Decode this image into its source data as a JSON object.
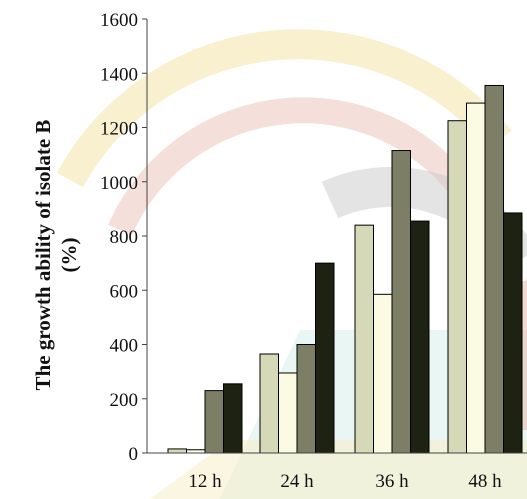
{
  "chart_data": {
    "type": "bar",
    "title": "",
    "xlabel": "",
    "ylabel_lines": [
      "The growth ability of isolate B",
      "(%)"
    ],
    "categories": [
      "12 h",
      "24 h",
      "36 h",
      "48 h"
    ],
    "series": [
      {
        "values": [
          15,
          365,
          840,
          1225
        ],
        "color": "#d6d9b8"
      },
      {
        "values": [
          12,
          295,
          585,
          1290
        ],
        "color": "#fbfbe4"
      },
      {
        "values": [
          230,
          400,
          1115,
          1355
        ],
        "color": "#7c7f66"
      },
      {
        "values": [
          255,
          700,
          855,
          885
        ],
        "color": "#1e2212"
      }
    ],
    "yticks": [
      "0",
      "200",
      "400",
      "600",
      "800",
      "1000",
      "1200",
      "1400",
      "1600"
    ],
    "ylim": [
      0,
      1600
    ],
    "grid": false,
    "legend": "none"
  }
}
